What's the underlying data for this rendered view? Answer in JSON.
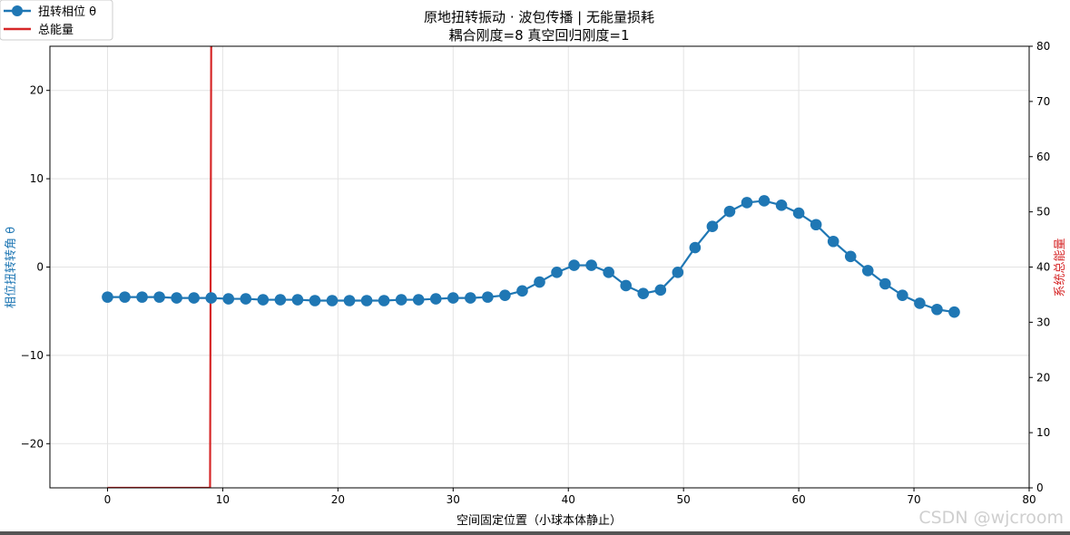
{
  "chart_data": {
    "type": "line",
    "title": "原地扭转振动 · 波包传播 | 无能量损耗",
    "subtitle": "耦合刚度=8  真空回归刚度=1",
    "xlabel": "空间固定位置（小球本体静止）",
    "ylabel_left": "相位扭转转角 θ",
    "ylabel_right": "系统总能量",
    "xlim": [
      -5,
      80
    ],
    "ylim_left": [
      -25,
      25
    ],
    "ylim_right": [
      0,
      80
    ],
    "x_ticks": [
      0,
      10,
      20,
      30,
      40,
      50,
      60,
      70,
      80
    ],
    "x_tick_labels": [
      "0",
      "10",
      "20",
      "30",
      "40",
      "50",
      "60",
      "70",
      "80"
    ],
    "y_left_ticks": [
      -20,
      -10,
      0,
      10,
      20
    ],
    "y_left_tick_labels": [
      "−20",
      "−10",
      "0",
      "10",
      "20"
    ],
    "y_right_ticks": [
      0,
      10,
      20,
      30,
      40,
      50,
      60,
      70,
      80
    ],
    "y_right_tick_labels": [
      "0",
      "10",
      "20",
      "30",
      "40",
      "50",
      "60",
      "70",
      "80"
    ],
    "grid": true,
    "legend_position": "top-left",
    "series": [
      {
        "name": "扭转相位 θ",
        "color": "#1f77b4",
        "marker": "circle",
        "x": [
          0,
          1.5,
          3,
          4.5,
          6,
          7.5,
          9,
          10.5,
          12,
          13.5,
          15,
          16.5,
          18,
          19.5,
          21,
          22.5,
          24,
          25.5,
          27,
          28.5,
          30,
          31.5,
          33,
          34.5,
          36,
          37.5,
          39,
          40.5,
          42,
          43.5,
          45,
          46.5,
          48,
          49.5,
          51,
          52.5,
          54,
          55.5,
          57,
          58.5,
          60,
          61.5,
          63,
          64.5,
          66,
          67.5,
          69,
          70.5,
          72,
          73.5
        ],
        "y": [
          -3.4,
          -3.4,
          -3.4,
          -3.4,
          -3.5,
          -3.5,
          -3.5,
          -3.6,
          -3.6,
          -3.7,
          -3.7,
          -3.7,
          -3.8,
          -3.8,
          -3.8,
          -3.8,
          -3.8,
          -3.7,
          -3.7,
          -3.6,
          -3.5,
          -3.5,
          -3.4,
          -3.2,
          -2.7,
          -1.7,
          -0.6,
          0.2,
          0.2,
          -0.6,
          -2.1,
          -3.0,
          -2.6,
          -0.6,
          2.2,
          4.6,
          6.3,
          7.3,
          7.5,
          7.0,
          6.1,
          4.8,
          2.9,
          1.2,
          -0.4,
          -1.9,
          -3.2,
          -4.1,
          -4.8,
          -5.1
        ]
      },
      {
        "name": "总能量",
        "color": "#d62728",
        "axis": "right",
        "x": [
          0,
          8.9,
          9.0,
          9.1
        ],
        "y": [
          0,
          0,
          80,
          80
        ]
      }
    ]
  },
  "watermark": "CSDN @wjcroom"
}
